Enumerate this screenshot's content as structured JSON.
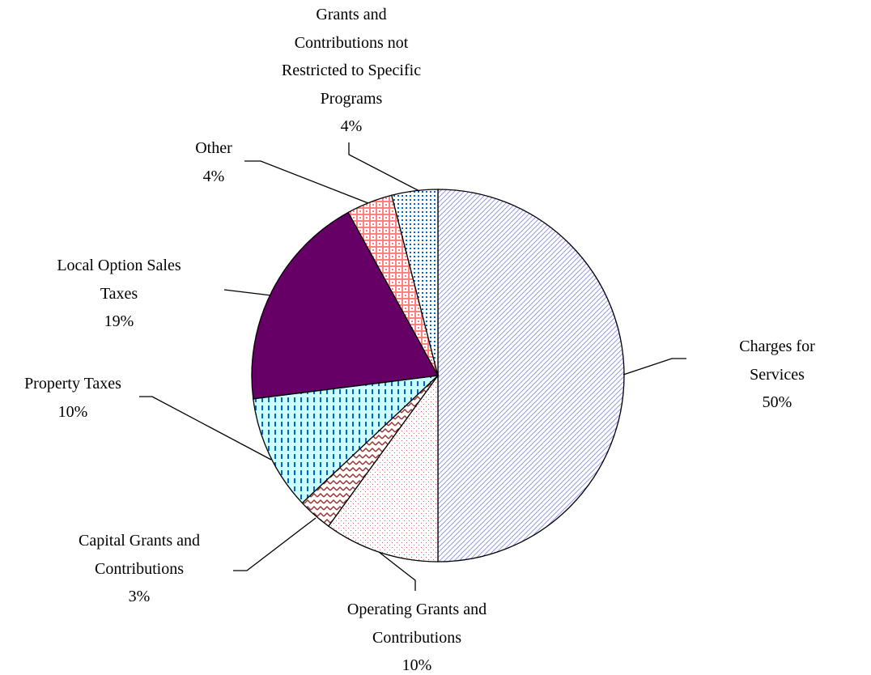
{
  "chart_data": {
    "type": "pie",
    "categories": [
      "Charges for Services",
      "Operating Grants and\nContributions",
      "Capital Grants and\nContributions",
      "Property Taxes",
      "Local Option Sales\nTaxes",
      "Other",
      "Grants and\nContributions not\nRestricted to Specific\nPrograms"
    ],
    "values": [
      50,
      10,
      3,
      10,
      19,
      4,
      4
    ],
    "value_labels": [
      "50%",
      "10%",
      "3%",
      "10%",
      "19%",
      "4%",
      "4%"
    ],
    "colors": [
      "#9999ff",
      "#cc6666",
      "#993333",
      "#0066cc",
      "#660066",
      "#ff8080",
      "#0066cc"
    ]
  }
}
